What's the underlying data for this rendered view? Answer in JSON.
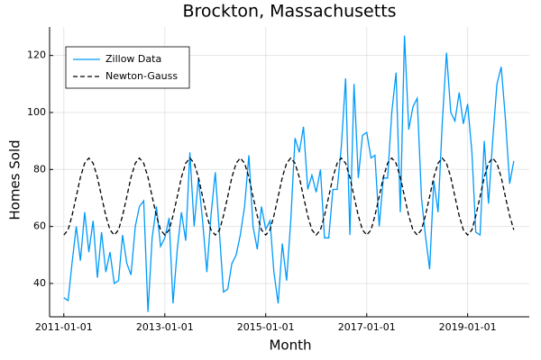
{
  "chart_data": {
    "type": "line",
    "title": "Brockton, Massachusetts",
    "x_label": "Month",
    "y_label": "Homes Sold",
    "x": [
      "2011-01-01",
      "2011-02-01",
      "2011-03-01",
      "2011-04-01",
      "2011-05-01",
      "2011-06-01",
      "2011-07-01",
      "2011-08-01",
      "2011-09-01",
      "2011-10-01",
      "2011-11-01",
      "2011-12-01",
      "2012-01-01",
      "2012-02-01",
      "2012-03-01",
      "2012-04-01",
      "2012-05-01",
      "2012-06-01",
      "2012-07-01",
      "2012-08-01",
      "2012-09-01",
      "2012-10-01",
      "2012-11-01",
      "2012-12-01",
      "2013-01-01",
      "2013-02-01",
      "2013-03-01",
      "2013-04-01",
      "2013-05-01",
      "2013-06-01",
      "2013-07-01",
      "2013-08-01",
      "2013-09-01",
      "2013-10-01",
      "2013-11-01",
      "2013-12-01",
      "2014-01-01",
      "2014-02-01",
      "2014-03-01",
      "2014-04-01",
      "2014-05-01",
      "2014-06-01",
      "2014-07-01",
      "2014-08-01",
      "2014-09-01",
      "2014-10-01",
      "2014-11-01",
      "2014-12-01",
      "2015-01-01",
      "2015-02-01",
      "2015-03-01",
      "2015-04-01",
      "2015-05-01",
      "2015-06-01",
      "2015-07-01",
      "2015-08-01",
      "2015-09-01",
      "2015-10-01",
      "2015-11-01",
      "2015-12-01",
      "2016-01-01",
      "2016-02-01",
      "2016-03-01",
      "2016-04-01",
      "2016-05-01",
      "2016-06-01",
      "2016-07-01",
      "2016-08-01",
      "2016-09-01",
      "2016-10-01",
      "2016-11-01",
      "2016-12-01",
      "2017-01-01",
      "2017-02-01",
      "2017-03-01",
      "2017-04-01",
      "2017-05-01",
      "2017-06-01",
      "2017-07-01",
      "2017-08-01",
      "2017-09-01",
      "2017-10-01",
      "2017-11-01",
      "2017-12-01",
      "2018-01-01",
      "2018-02-01",
      "2018-03-01",
      "2018-04-01",
      "2018-05-01",
      "2018-06-01",
      "2018-07-01",
      "2018-08-01",
      "2018-09-01",
      "2018-10-01",
      "2018-11-01",
      "2018-12-01",
      "2019-01-01",
      "2019-02-01",
      "2019-03-01",
      "2019-04-01",
      "2019-05-01",
      "2019-06-01",
      "2019-07-01",
      "2019-08-01",
      "2019-09-01",
      "2019-10-01",
      "2019-11-01",
      "2019-12-01"
    ],
    "series": [
      {
        "name": "Zillow Data",
        "color": "#009af9",
        "dash": false,
        "values": [
          35,
          34,
          47,
          60,
          48,
          65,
          51,
          62,
          42,
          58,
          44,
          51,
          40,
          41,
          57,
          47,
          43,
          60,
          67,
          69,
          30,
          56,
          67,
          53,
          56,
          63,
          33,
          52,
          65,
          55,
          86,
          60,
          77,
          62,
          44,
          64,
          79,
          57,
          37,
          38,
          47,
          50,
          57,
          67,
          85,
          60,
          52,
          67,
          59,
          62,
          44,
          33,
          54,
          41,
          62,
          91,
          86,
          95,
          73,
          78,
          72,
          80,
          56,
          56,
          73,
          73,
          88,
          112,
          57,
          110,
          77,
          92,
          93,
          84,
          85,
          60,
          77,
          77,
          100,
          114,
          65,
          127,
          94,
          102,
          105,
          70,
          57,
          45,
          76,
          65,
          96,
          121,
          100,
          97,
          107,
          96,
          103,
          86,
          58,
          57,
          90,
          68,
          90,
          110,
          116,
          98,
          75,
          83
        ]
      },
      {
        "name": "Newton-Gauss",
        "color": "#000000",
        "dash": true,
        "values": [
          57,
          58.8,
          63.75,
          70.5,
          77.25,
          82.2,
          84,
          82.2,
          77.25,
          70.5,
          63.75,
          58.8,
          57,
          58.8,
          63.75,
          70.5,
          77.25,
          82.2,
          84,
          82.2,
          77.25,
          70.5,
          63.75,
          58.8,
          57,
          58.8,
          63.75,
          70.5,
          77.25,
          82.2,
          84,
          82.2,
          77.25,
          70.5,
          63.75,
          58.8,
          57,
          58.8,
          63.75,
          70.5,
          77.25,
          82.2,
          84,
          82.2,
          77.25,
          70.5,
          63.75,
          58.8,
          57,
          58.8,
          63.75,
          70.5,
          77.25,
          82.2,
          84,
          82.2,
          77.25,
          70.5,
          63.75,
          58.8,
          57,
          58.8,
          63.75,
          70.5,
          77.25,
          82.2,
          84,
          82.2,
          77.25,
          70.5,
          63.75,
          58.8,
          57,
          58.8,
          63.75,
          70.5,
          77.25,
          82.2,
          84,
          82.2,
          77.25,
          70.5,
          63.75,
          58.8,
          57,
          58.8,
          63.75,
          70.5,
          77.25,
          82.2,
          84,
          82.2,
          77.25,
          70.5,
          63.75,
          58.8,
          57,
          58.8,
          63.75,
          70.5,
          77.25,
          82.2,
          84,
          82.2,
          77.25,
          70.5,
          63.75,
          58.8
        ]
      }
    ],
    "xlim": [
      "2010-09-20",
      "2020-03-22"
    ],
    "xticks": [
      "2011-01-01",
      "2013-01-01",
      "2015-01-01",
      "2017-01-01",
      "2019-01-01"
    ],
    "ylim": [
      28.3,
      130
    ],
    "yticks": [
      40,
      60,
      80,
      100,
      120
    ],
    "grid": true,
    "legend": "upper left"
  }
}
